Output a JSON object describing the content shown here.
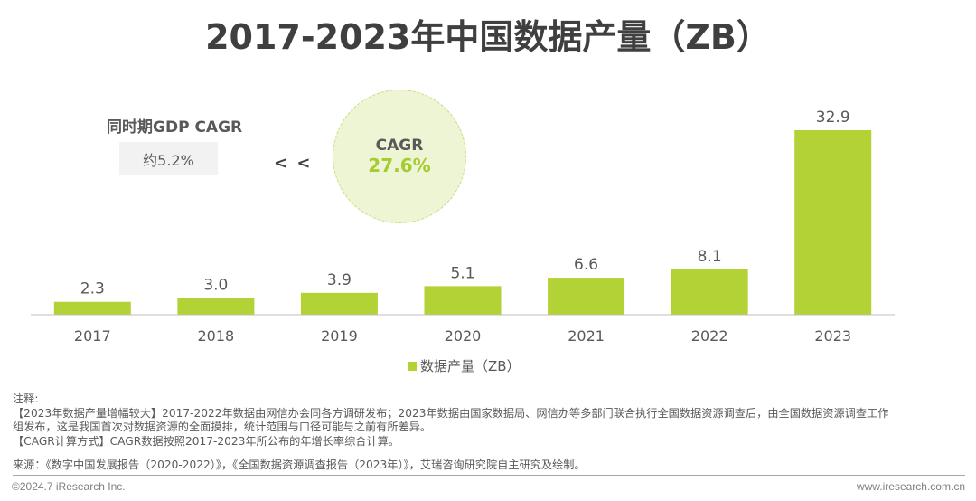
{
  "title": "2017-2023年中国数据产量（ZB）",
  "comparison": {
    "gdp_label": "同时期GDP CAGR",
    "gdp_value": "约5.2%",
    "operator": "< <",
    "cagr_label": "CAGR",
    "cagr_value": "27.6%"
  },
  "colors": {
    "bar": "#b2d235",
    "accent": "#a5cc2e",
    "circle_fill": "#eef5d5",
    "text": "#595959"
  },
  "chart_data": {
    "type": "bar",
    "title": "2017-2023年中国数据产量（ZB）",
    "categories": [
      "2017",
      "2018",
      "2019",
      "2020",
      "2021",
      "2022",
      "2023"
    ],
    "series": [
      {
        "name": "数据产量（ZB）",
        "values": [
          2.3,
          3.0,
          3.9,
          5.1,
          6.6,
          8.1,
          32.9
        ],
        "labels": [
          "2.3",
          "3.0",
          "3.9",
          "5.1",
          "6.6",
          "8.1",
          "32.9"
        ]
      }
    ],
    "xlabel": "",
    "ylabel": "",
    "ylim": [
      0,
      32.9
    ],
    "grid": false,
    "legend": "bottom-center"
  },
  "legend": {
    "label": "数据产量（ZB）"
  },
  "notes": {
    "heading": "注释:",
    "line1": "【2023年数据产量增幅较大】2017-2022年数据由网信办会同各方调研发布；2023年数据由国家数据局、网信办等多部门联合执行全国数据资源调查后，由全国数据资源调查工作",
    "line2": "组发布，这是我国首次对数据资源的全面摸排，统计范围与口径可能与之前有所差异。",
    "line3": "【CAGR计算方式】CAGR数据按照2017-2023年所公布的年增长率综合计算。"
  },
  "source": "来源：《数字中国发展报告（2020-2022）》，《全国数据资源调查报告（2023年）》，艾瑞咨询研究院自主研究及绘制。",
  "footer": {
    "copyright": "©2024.7 iResearch Inc.",
    "website": "www.iresearch.com.cn"
  }
}
